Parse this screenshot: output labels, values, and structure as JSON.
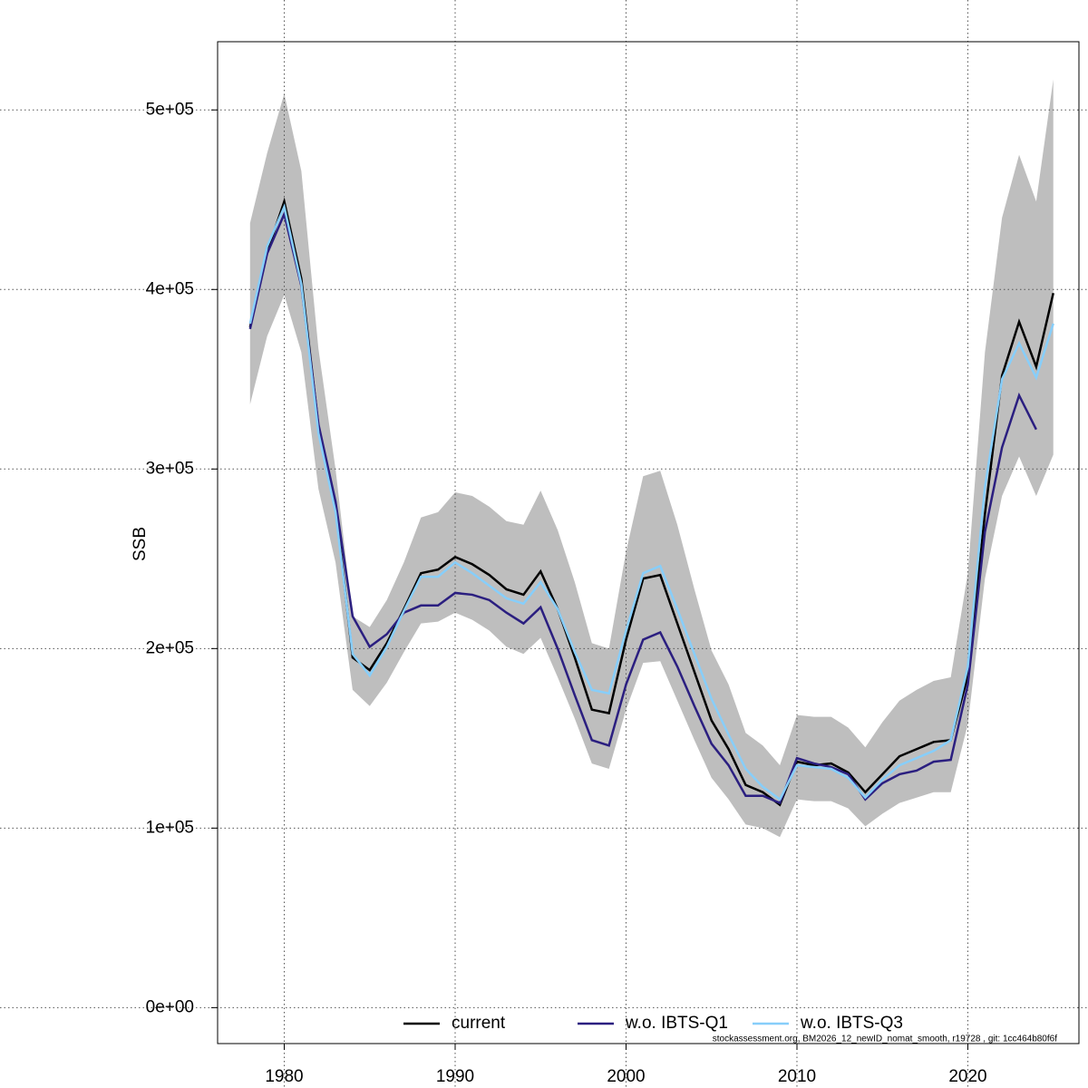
{
  "chart_data": {
    "type": "line",
    "y_label": "SSB",
    "footnote": "stockassessment.org, BM2026_12_newID_nomat_smooth, r19728 , git: 1cc464b80f6f",
    "x": [
      1978,
      1979,
      1980,
      1981,
      1982,
      1983,
      1984,
      1985,
      1986,
      1987,
      1988,
      1989,
      1990,
      1991,
      1992,
      1993,
      1994,
      1995,
      1996,
      1997,
      1998,
      1999,
      2000,
      2001,
      2002,
      2003,
      2004,
      2005,
      2006,
      2007,
      2008,
      2009,
      2010,
      2011,
      2012,
      2013,
      2014,
      2015,
      2016,
      2017,
      2018,
      2019,
      2020,
      2021,
      2022,
      2023,
      2024,
      2025
    ],
    "band": {
      "color": "#bebebe",
      "upper": [
        437000,
        476000,
        509000,
        466000,
        367000,
        300000,
        218000,
        212000,
        227000,
        248000,
        273000,
        276000,
        287000,
        285000,
        279000,
        271000,
        269000,
        288000,
        266000,
        237000,
        203000,
        200000,
        254000,
        296000,
        299000,
        269000,
        233000,
        199000,
        180000,
        153000,
        146000,
        135000,
        163000,
        162000,
        162000,
        156000,
        145000,
        159000,
        171000,
        177000,
        182000,
        184000,
        242000,
        365000,
        440000,
        475000,
        449000,
        517000
      ],
      "lower": [
        336000,
        374000,
        397000,
        365000,
        289000,
        248000,
        177000,
        168000,
        181000,
        198000,
        214000,
        215000,
        220000,
        216000,
        210000,
        201000,
        197000,
        206000,
        184000,
        161000,
        136000,
        133000,
        166000,
        192000,
        193000,
        171000,
        149000,
        128000,
        116000,
        102000,
        100000,
        95000,
        116000,
        115000,
        115000,
        111000,
        101000,
        108000,
        114000,
        117000,
        120000,
        120000,
        158000,
        239000,
        285000,
        307000,
        285000,
        308000
      ]
    },
    "series": [
      {
        "name": "current",
        "color": "#000000",
        "values": [
          379000,
          421000,
          449000,
          406000,
          324000,
          280000,
          195000,
          188000,
          203000,
          222000,
          242000,
          244000,
          251000,
          247000,
          241000,
          233000,
          230000,
          243000,
          222000,
          195000,
          166000,
          164000,
          205000,
          239000,
          241000,
          214000,
          187000,
          160000,
          144000,
          124000,
          120000,
          113000,
          137000,
          135000,
          136000,
          131000,
          120000,
          130000,
          140000,
          144000,
          148000,
          149000,
          185000,
          275000,
          352000,
          382000,
          357000,
          398000
        ]
      },
      {
        "name": "w.o. IBTS-Q1",
        "color": "#2b1f80",
        "values": [
          378000,
          420000,
          442000,
          402000,
          325000,
          282000,
          218000,
          201000,
          208000,
          220000,
          224000,
          224000,
          231000,
          230000,
          227000,
          220000,
          214000,
          223000,
          200000,
          174000,
          149000,
          146000,
          180000,
          205000,
          209000,
          190000,
          168000,
          147000,
          135000,
          118000,
          118000,
          114000,
          139000,
          136000,
          134000,
          130000,
          116000,
          125000,
          130000,
          132000,
          137000,
          138000,
          180000,
          265000,
          312000,
          341000,
          322000,
          null
        ]
      },
      {
        "name": "w.o. IBTS-Q3",
        "color": "#87cefa",
        "values": [
          381000,
          424000,
          446000,
          403000,
          320000,
          276000,
          197000,
          185000,
          201000,
          221000,
          240000,
          240000,
          248000,
          242000,
          235000,
          228000,
          225000,
          237000,
          222000,
          198000,
          177000,
          175000,
          210000,
          242000,
          246000,
          222000,
          197000,
          172000,
          152000,
          133000,
          123000,
          116000,
          135000,
          134000,
          133000,
          128000,
          117000,
          127000,
          135000,
          139000,
          143000,
          149000,
          190000,
          290000,
          350000,
          370000,
          351000,
          381000
        ]
      }
    ],
    "xlim": [
      1976.1,
      2026.5
    ],
    "xticks": [
      1980,
      1990,
      2000,
      2010,
      2020
    ],
    "ylim": [
      -20000,
      538000
    ],
    "yticks": [
      {
        "value": 0,
        "label": "0e+00"
      },
      {
        "value": 100000,
        "label": "1e+05"
      },
      {
        "value": 200000,
        "label": "2e+05"
      },
      {
        "value": 300000,
        "label": "3e+05"
      },
      {
        "value": 400000,
        "label": "4e+05"
      },
      {
        "value": 500000,
        "label": "5e+05"
      }
    ],
    "grid": true,
    "legend": "bottom"
  }
}
